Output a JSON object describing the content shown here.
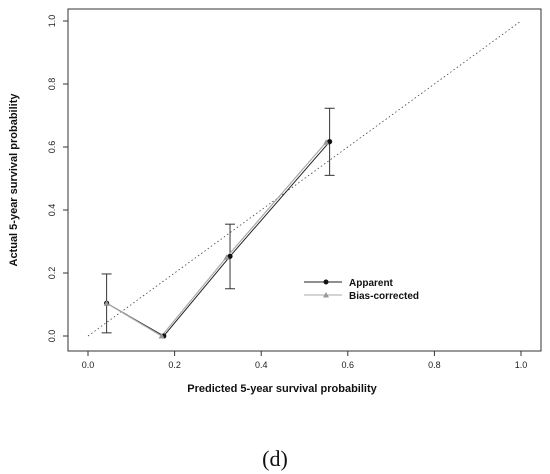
{
  "chart_data": {
    "type": "line",
    "title": "",
    "xlabel": "Predicted 5-year survival probability",
    "ylabel": "Actual 5-year survival probability",
    "xlim": [
      0.0,
      1.0
    ],
    "ylim": [
      0.0,
      1.0
    ],
    "x_ticks": [
      "0.0",
      "0.2",
      "0.4",
      "0.6",
      "0.8",
      "1.0"
    ],
    "y_ticks": [
      "0.0",
      "0.2",
      "0.4",
      "0.6",
      "0.8",
      "1.0"
    ],
    "grid": false,
    "legend_position": "lower-right",
    "reference_line": {
      "style": "dotted",
      "from": [
        0.0,
        0.0
      ],
      "to": [
        1.0,
        1.0
      ]
    },
    "series": [
      {
        "name": "Apparent",
        "marker": "circle",
        "color": "#222222",
        "points": [
          {
            "x": 0.043,
            "y": 0.104
          },
          {
            "x": 0.175,
            "y": 0.0
          },
          {
            "x": 0.328,
            "y": 0.253
          },
          {
            "x": 0.558,
            "y": 0.617
          }
        ],
        "error_bars": [
          {
            "x": 0.043,
            "low": 0.01,
            "high": 0.197
          },
          {
            "x": 0.175,
            "low": 0.0,
            "high": 0.0
          },
          {
            "x": 0.328,
            "low": 0.15,
            "high": 0.355
          },
          {
            "x": 0.558,
            "low": 0.51,
            "high": 0.723
          }
        ]
      },
      {
        "name": "Bias-corrected",
        "marker": "triangle",
        "color": "#aaaaaa",
        "points": [
          {
            "x": 0.043,
            "y": 0.104
          },
          {
            "x": 0.17,
            "y": 0.0
          },
          {
            "x": 0.32,
            "y": 0.25
          },
          {
            "x": 0.55,
            "y": 0.615
          }
        ]
      }
    ],
    "caption": "(d)"
  }
}
